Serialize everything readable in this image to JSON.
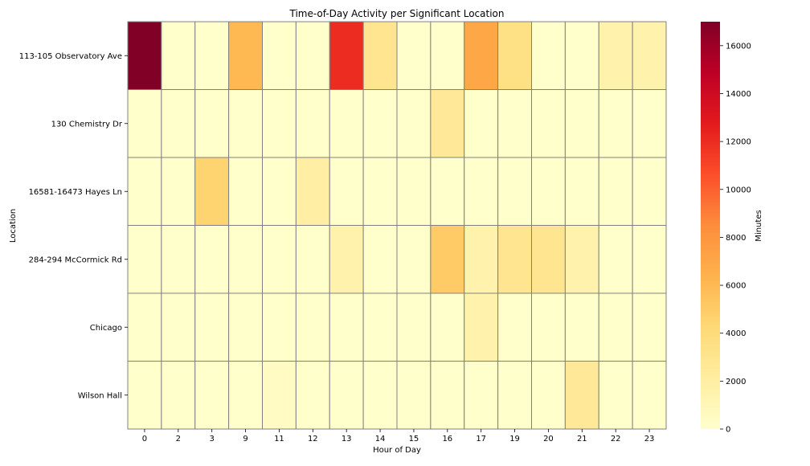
{
  "chart_data": {
    "type": "heatmap",
    "title": "Time-of-Day Activity per Significant Location",
    "xlabel": "Hour of Day",
    "ylabel": "Location",
    "x_categories": [
      "0",
      "2",
      "3",
      "9",
      "11",
      "12",
      "13",
      "14",
      "15",
      "16",
      "17",
      "19",
      "20",
      "21",
      "22",
      "23"
    ],
    "y_categories": [
      "113-105 Observatory Ave",
      "130 Chemistry Dr",
      "16581-16473 Hayes Ln",
      "284-294 McCormick Rd",
      "Chicago",
      "Wilson Hall"
    ],
    "values": [
      [
        17000,
        0,
        0,
        6000,
        0,
        0,
        12000,
        3000,
        0,
        0,
        7000,
        3500,
        0,
        0,
        1500,
        1500
      ],
      [
        0,
        0,
        0,
        0,
        0,
        0,
        0,
        0,
        0,
        2500,
        0,
        0,
        0,
        0,
        0,
        0
      ],
      [
        0,
        0,
        4500,
        0,
        0,
        2000,
        0,
        0,
        0,
        0,
        0,
        0,
        0,
        0,
        0,
        0
      ],
      [
        0,
        0,
        0,
        0,
        0,
        0,
        1500,
        0,
        0,
        5000,
        1500,
        3000,
        3000,
        1500,
        0,
        0
      ],
      [
        0,
        0,
        0,
        0,
        0,
        0,
        0,
        0,
        0,
        0,
        1500,
        0,
        0,
        0,
        0,
        0
      ],
      [
        0,
        0,
        0,
        0,
        500,
        0,
        0,
        0,
        0,
        0,
        0,
        0,
        0,
        2500,
        0,
        0
      ]
    ],
    "colorbar": {
      "label": "Minutes",
      "range": [
        0,
        17000
      ],
      "ticks": [
        "0",
        "2000",
        "4000",
        "6000",
        "8000",
        "10000",
        "12000",
        "14000",
        "16000"
      ],
      "colormap": "YlOrRd"
    }
  }
}
